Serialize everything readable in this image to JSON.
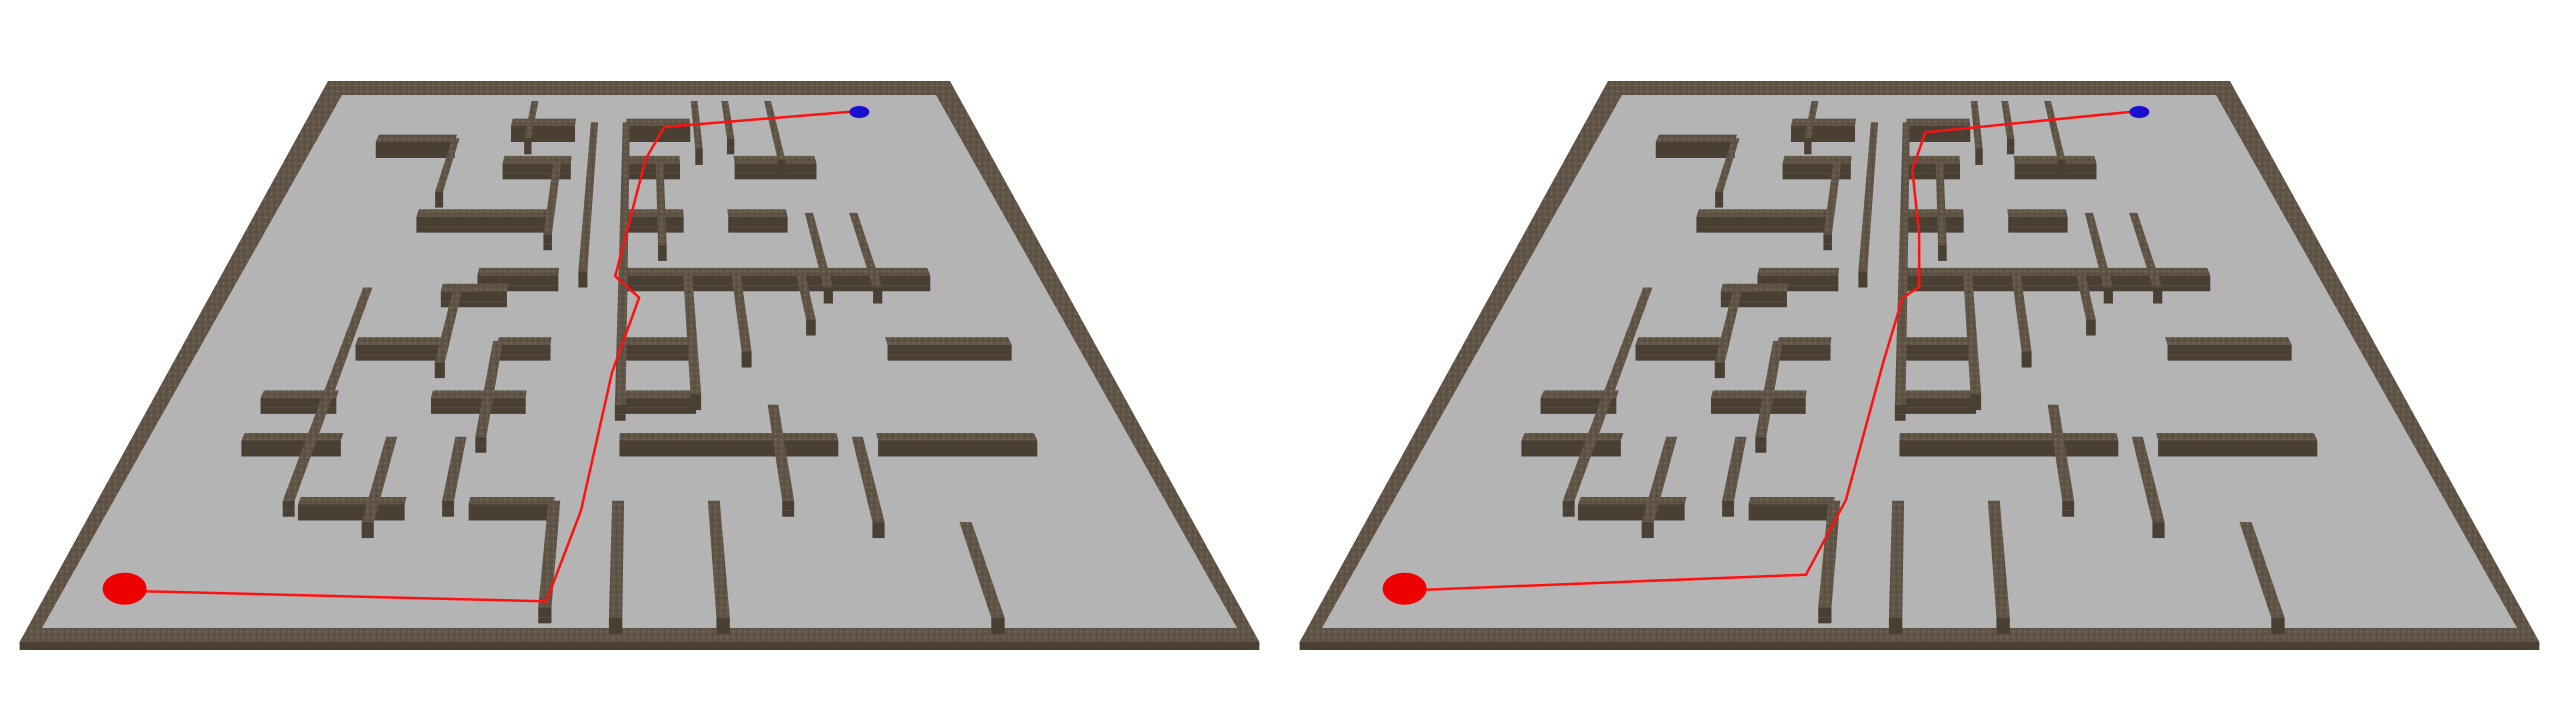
{
  "colors": {
    "background": "#ffffff",
    "floor": "#b4b4b4",
    "wall_top": "#5f5446",
    "wall_side": "#4a3f33",
    "wall_texture": "#7a6d5c",
    "path": "#ff1111",
    "start_marker": "#ee0000",
    "goal_marker": "#1a10d0"
  },
  "icons": {
    "start": "red-ellipse-start-marker",
    "goal": "blue-ellipse-goal-marker"
  },
  "panels": [
    {
      "id": "left",
      "view": "maze-with-path-candidate-a"
    },
    {
      "id": "right",
      "view": "maze-with-path-candidate-b"
    }
  ]
}
